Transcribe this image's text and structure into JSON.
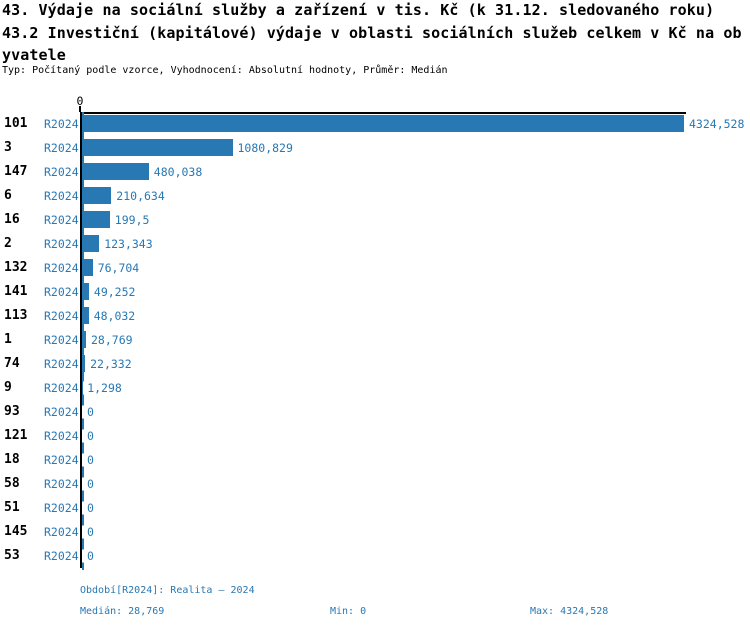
{
  "title": {
    "line1": "43. Výdaje na sociální služby a zařízení v tis. Kč (k 31.12. sledovaného roku)",
    "line2": "43.2 Investiční (kapitálové) výdaje v oblasti sociálních služeb celkem v Kč na ob",
    "line3": "yvatele",
    "meta": "Typ: Počítaný podle vzorce, Vyhodnocení: Absolutní hodnoty, Průměr: Medián"
  },
  "chart_data": {
    "type": "bar",
    "orientation": "horizontal",
    "series_label": "R2024",
    "axis_zero_label": "0",
    "categories": [
      "101",
      "3",
      "147",
      "6",
      "16",
      "2",
      "132",
      "141",
      "113",
      "1",
      "74",
      "9",
      "93",
      "121",
      "18",
      "58",
      "51",
      "145",
      "53"
    ],
    "values": [
      4324.528,
      1080.829,
      480.038,
      210.634,
      199.5,
      123.343,
      76.704,
      49.252,
      48.032,
      28.769,
      22.332,
      1.298,
      0,
      0,
      0,
      0,
      0,
      0,
      0
    ],
    "value_labels": [
      "4324,528",
      "1080,829",
      "480,038",
      "210,634",
      "199,5",
      "123,343",
      "76,704",
      "49,252",
      "48,032",
      "28,769",
      "22,332",
      "1,298",
      "0",
      "0",
      "0",
      "0",
      "0",
      "0",
      "0"
    ],
    "xlim": [
      0,
      4324.528
    ],
    "grid": "zero-line-dashed",
    "legend_position": "none",
    "bar_color": "#2878b4",
    "axis_color": "#000000",
    "label_color": "#2878b4"
  },
  "footer": {
    "period": "Období[R2024]: Realita – 2024",
    "median": "Medián: 28,769",
    "min": "Min: 0",
    "max": "Max: 4324,528"
  },
  "colors": {
    "accent_blue": "#2878b4",
    "text_black": "#000000",
    "background": "#ffffff"
  }
}
